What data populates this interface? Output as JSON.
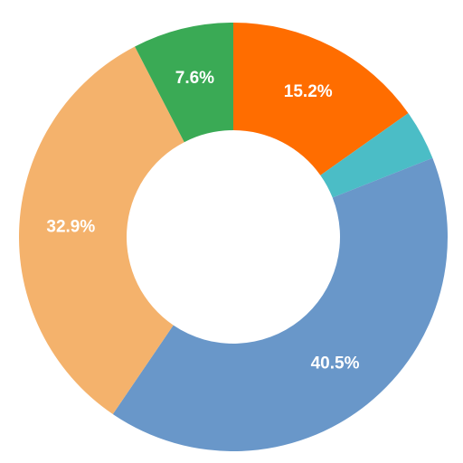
{
  "chart_data": {
    "type": "donut",
    "values": [
      15.2,
      3.8,
      40.5,
      32.9,
      7.6
    ],
    "value_labels": [
      "15.2%",
      null,
      "40.5%",
      "32.9%",
      "7.6%"
    ],
    "colors": [
      "#ff6d00",
      "#4bbdc6",
      "#6997c9",
      "#f4b26c",
      "#3aaa55"
    ]
  }
}
